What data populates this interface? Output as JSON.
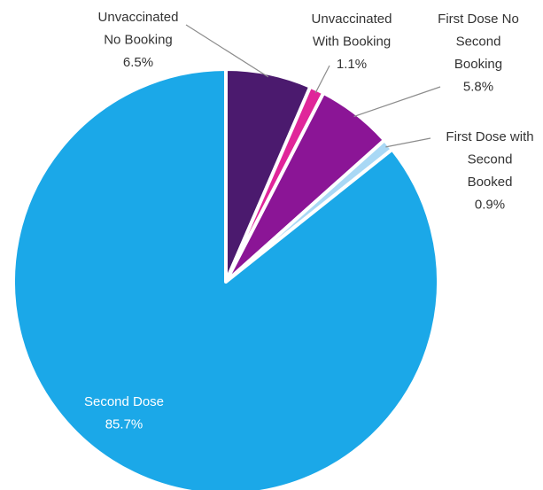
{
  "chart_data": {
    "type": "pie",
    "slices": [
      {
        "label_lines": [
          "Unvaccinated",
          "No Booking"
        ],
        "value_label": "6.5%",
        "value": 6.5,
        "color": "#4b1a6e"
      },
      {
        "label_lines": [
          "Unvaccinated",
          "With Booking"
        ],
        "value_label": "1.1%",
        "value": 1.1,
        "color": "#e0269a"
      },
      {
        "label_lines": [
          "First Dose No",
          "Second",
          "Booking"
        ],
        "value_label": "5.8%",
        "value": 5.8,
        "color": "#8b1596"
      },
      {
        "label_lines": [
          "First Dose with",
          "Second",
          "Booked"
        ],
        "value_label": "0.9%",
        "value": 0.9,
        "color": "#a9d8f5"
      },
      {
        "label_lines": [
          "Second Dose"
        ],
        "value_label": "85.7%",
        "value": 85.7,
        "color": "#1ba8e8"
      }
    ],
    "start_angle": "12 o'clock",
    "direction": "clockwise",
    "legend": "none"
  }
}
